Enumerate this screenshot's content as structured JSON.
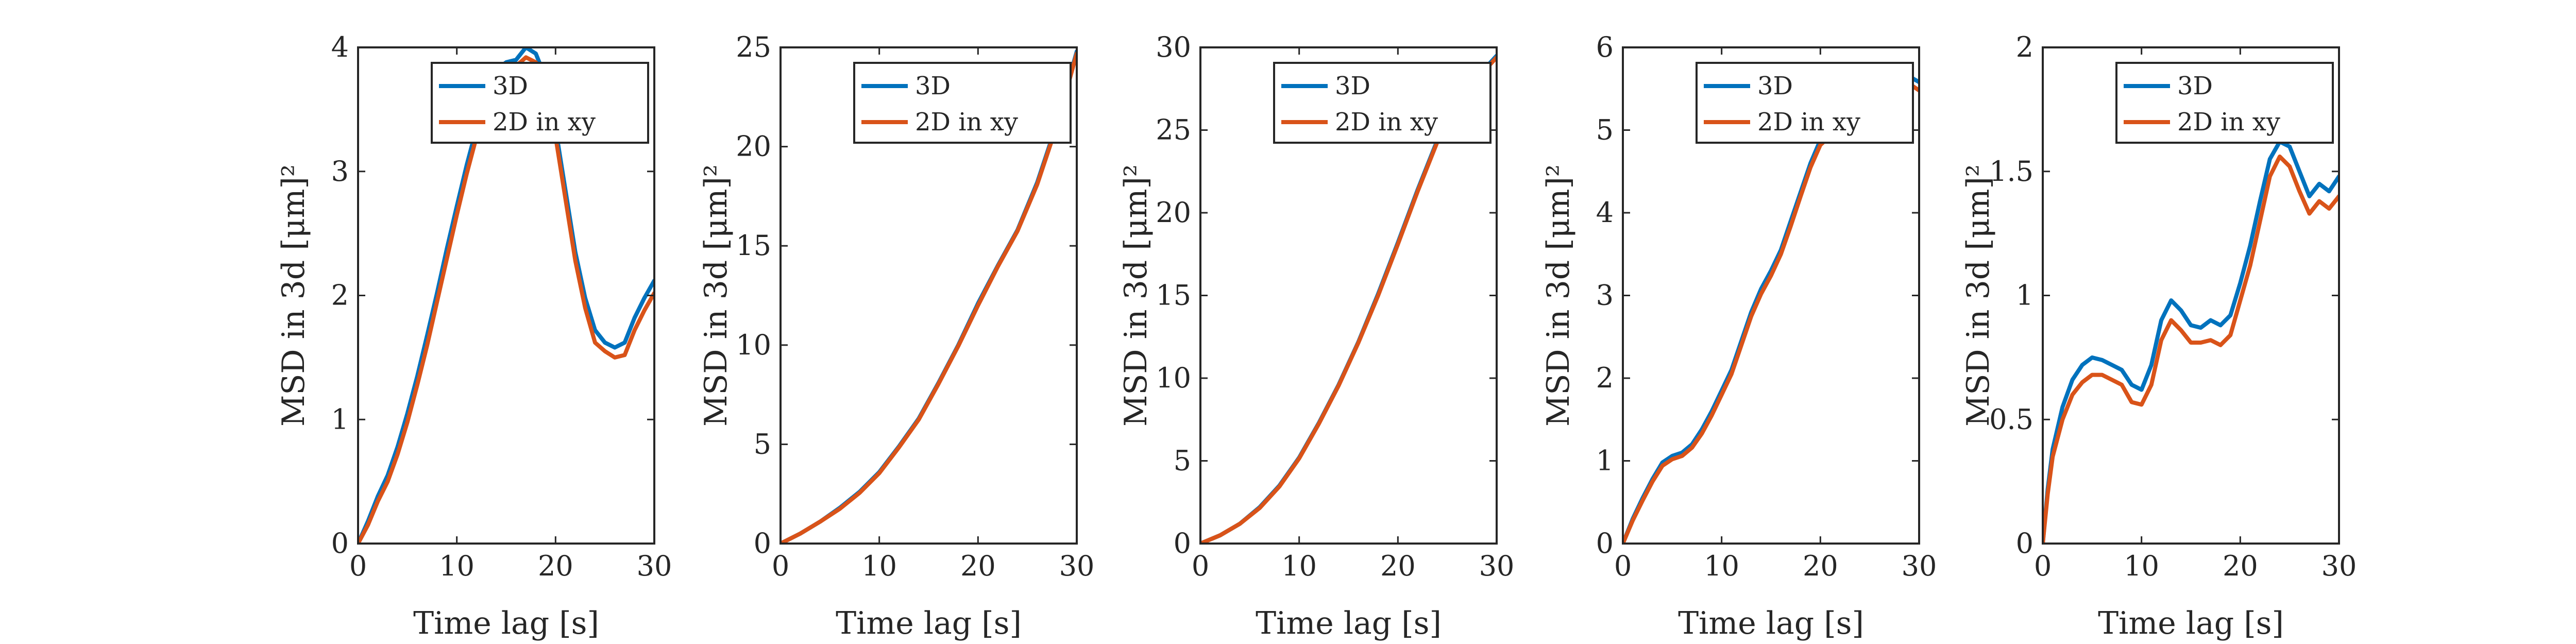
{
  "chart_data": [
    {
      "type": "line",
      "xlabel": "Time lag [s]",
      "ylabel": "MSD in 3d [μm]²",
      "xlim": [
        0,
        30
      ],
      "ylim": [
        0,
        4
      ],
      "xticks": [
        "0",
        "10",
        "20",
        "30"
      ],
      "yticks": [
        "0",
        "1",
        "2",
        "3",
        "4"
      ],
      "legend": "top-right",
      "series": [
        {
          "name": "3D",
          "color": "#0072BD",
          "x": [
            0,
            1,
            2,
            3,
            4,
            5,
            6,
            7,
            8,
            9,
            10,
            11,
            12,
            13,
            14,
            15,
            16,
            17,
            18,
            19,
            20,
            21,
            22,
            23,
            24,
            25,
            26,
            27,
            28,
            29,
            30
          ],
          "y": [
            0,
            0.18,
            0.38,
            0.55,
            0.78,
            1.05,
            1.35,
            1.68,
            2.02,
            2.38,
            2.72,
            3.05,
            3.35,
            3.6,
            3.82,
            3.88,
            3.9,
            4.0,
            3.95,
            3.75,
            3.35,
            2.85,
            2.35,
            1.98,
            1.72,
            1.62,
            1.58,
            1.62,
            1.82,
            1.98,
            2.12
          ]
        },
        {
          "name": "2D in xy",
          "color": "#D95319",
          "x": [
            0,
            1,
            2,
            3,
            4,
            5,
            6,
            7,
            8,
            9,
            10,
            11,
            12,
            13,
            14,
            15,
            16,
            17,
            18,
            19,
            20,
            21,
            22,
            23,
            24,
            25,
            26,
            27,
            28,
            29,
            30
          ],
          "y": [
            0,
            0.15,
            0.34,
            0.5,
            0.72,
            0.98,
            1.28,
            1.6,
            1.95,
            2.3,
            2.65,
            2.98,
            3.28,
            3.55,
            3.75,
            3.82,
            3.85,
            3.92,
            3.88,
            3.68,
            3.28,
            2.78,
            2.28,
            1.9,
            1.62,
            1.55,
            1.5,
            1.52,
            1.72,
            1.88,
            2.02
          ]
        }
      ]
    },
    {
      "type": "line",
      "xlabel": "Time lag [s]",
      "ylabel": "MSD in 3d [μm]²",
      "xlim": [
        0,
        30
      ],
      "ylim": [
        0,
        25
      ],
      "xticks": [
        "0",
        "10",
        "20",
        "30"
      ],
      "yticks": [
        "0",
        "5",
        "10",
        "15",
        "20",
        "25"
      ],
      "legend": "top-right",
      "series": [
        {
          "name": "3D",
          "color": "#0072BD",
          "x": [
            0,
            2,
            4,
            6,
            8,
            10,
            12,
            14,
            16,
            18,
            20,
            22,
            24,
            26,
            28,
            30
          ],
          "y": [
            0,
            0.5,
            1.1,
            1.8,
            2.6,
            3.6,
            4.9,
            6.3,
            8.1,
            10.0,
            12.1,
            14.0,
            15.8,
            18.2,
            21.2,
            24.8
          ]
        },
        {
          "name": "2D in xy",
          "color": "#D95319",
          "x": [
            0,
            2,
            4,
            6,
            8,
            10,
            12,
            14,
            16,
            18,
            20,
            22,
            24,
            26,
            28,
            30
          ],
          "y": [
            0,
            0.5,
            1.1,
            1.75,
            2.55,
            3.55,
            4.85,
            6.25,
            8.05,
            9.95,
            12.0,
            13.95,
            15.75,
            18.1,
            21.1,
            24.7
          ]
        }
      ]
    },
    {
      "type": "line",
      "xlabel": "Time lag [s]",
      "ylabel": "MSD in 3d [μm]²",
      "xlim": [
        0,
        30
      ],
      "ylim": [
        0,
        30
      ],
      "xticks": [
        "0",
        "10",
        "20",
        "30"
      ],
      "yticks": [
        "0",
        "5",
        "10",
        "15",
        "20",
        "25",
        "30"
      ],
      "legend": "top-right",
      "series": [
        {
          "name": "3D",
          "color": "#0072BD",
          "x": [
            0,
            2,
            4,
            6,
            8,
            10,
            12,
            14,
            16,
            18,
            20,
            22,
            24,
            26,
            28,
            30
          ],
          "y": [
            0,
            0.5,
            1.2,
            2.2,
            3.5,
            5.2,
            7.3,
            9.6,
            12.2,
            15.1,
            18.2,
            21.4,
            24.4,
            26.9,
            28.2,
            29.5
          ]
        },
        {
          "name": "2D in xy",
          "color": "#D95319",
          "x": [
            0,
            2,
            4,
            6,
            8,
            10,
            12,
            14,
            16,
            18,
            20,
            22,
            24,
            26,
            28,
            30
          ],
          "y": [
            0,
            0.5,
            1.2,
            2.15,
            3.45,
            5.15,
            7.25,
            9.55,
            12.15,
            15.0,
            18.1,
            21.3,
            24.3,
            26.8,
            28.1,
            29.4
          ]
        }
      ]
    },
    {
      "type": "line",
      "xlabel": "Time lag [s]",
      "ylabel": "MSD in 3d [μm]²",
      "xlim": [
        0,
        30
      ],
      "ylim": [
        0,
        6
      ],
      "xticks": [
        "0",
        "10",
        "20",
        "30"
      ],
      "yticks": [
        "0",
        "1",
        "2",
        "3",
        "4",
        "5",
        "6"
      ],
      "legend": "top-right",
      "series": [
        {
          "name": "3D",
          "color": "#0072BD",
          "x": [
            0,
            1,
            2,
            3,
            4,
            5,
            6,
            7,
            8,
            9,
            10,
            11,
            12,
            13,
            14,
            15,
            16,
            17,
            18,
            19,
            20,
            21,
            22,
            23,
            24,
            25,
            26,
            27,
            28,
            29,
            30
          ],
          "y": [
            0,
            0.3,
            0.55,
            0.78,
            0.98,
            1.06,
            1.1,
            1.2,
            1.38,
            1.6,
            1.85,
            2.1,
            2.45,
            2.8,
            3.08,
            3.3,
            3.55,
            3.9,
            4.25,
            4.6,
            4.88,
            5.0,
            4.95,
            5.05,
            5.2,
            5.35,
            5.5,
            5.6,
            5.68,
            5.65,
            5.58
          ]
        },
        {
          "name": "2D in xy",
          "color": "#D95319",
          "x": [
            0,
            1,
            2,
            3,
            4,
            5,
            6,
            7,
            8,
            9,
            10,
            11,
            12,
            13,
            14,
            15,
            16,
            17,
            18,
            19,
            20,
            21,
            22,
            23,
            24,
            25,
            26,
            27,
            28,
            29,
            30
          ],
          "y": [
            0,
            0.28,
            0.52,
            0.75,
            0.94,
            1.02,
            1.06,
            1.16,
            1.33,
            1.55,
            1.8,
            2.05,
            2.4,
            2.75,
            3.02,
            3.24,
            3.5,
            3.84,
            4.2,
            4.55,
            4.82,
            4.93,
            4.88,
            4.98,
            5.12,
            5.27,
            5.42,
            5.52,
            5.6,
            5.56,
            5.48
          ]
        }
      ]
    },
    {
      "type": "line",
      "xlabel": "Time lag [s]",
      "ylabel": "MSD in 3d [μm]²",
      "xlim": [
        0,
        30
      ],
      "ylim": [
        0,
        2
      ],
      "xticks": [
        "0",
        "10",
        "20",
        "30"
      ],
      "yticks": [
        "0",
        "0.5",
        "1",
        "1.5",
        "2"
      ],
      "legend": "top-right",
      "series": [
        {
          "name": "3D",
          "color": "#0072BD",
          "x": [
            0,
            0.5,
            1,
            2,
            3,
            4,
            5,
            6,
            7,
            8,
            9,
            10,
            11,
            12,
            13,
            14,
            15,
            16,
            17,
            18,
            19,
            20,
            21,
            22,
            23,
            24,
            25,
            26,
            27,
            28,
            29,
            30
          ],
          "y": [
            0,
            0.22,
            0.38,
            0.55,
            0.66,
            0.72,
            0.75,
            0.74,
            0.72,
            0.7,
            0.64,
            0.62,
            0.72,
            0.9,
            0.98,
            0.94,
            0.88,
            0.87,
            0.9,
            0.88,
            0.92,
            1.05,
            1.2,
            1.38,
            1.55,
            1.62,
            1.6,
            1.5,
            1.4,
            1.45,
            1.42,
            1.48
          ]
        },
        {
          "name": "2D in xy",
          "color": "#D95319",
          "x": [
            0,
            0.5,
            1,
            2,
            3,
            4,
            5,
            6,
            7,
            8,
            9,
            10,
            11,
            12,
            13,
            14,
            15,
            16,
            17,
            18,
            19,
            20,
            21,
            22,
            23,
            24,
            25,
            26,
            27,
            28,
            29,
            30
          ],
          "y": [
            0,
            0.2,
            0.35,
            0.5,
            0.6,
            0.65,
            0.68,
            0.68,
            0.66,
            0.64,
            0.57,
            0.56,
            0.64,
            0.82,
            0.9,
            0.86,
            0.81,
            0.81,
            0.82,
            0.8,
            0.84,
            0.98,
            1.12,
            1.3,
            1.48,
            1.56,
            1.52,
            1.42,
            1.33,
            1.38,
            1.35,
            1.4
          ]
        }
      ]
    }
  ]
}
